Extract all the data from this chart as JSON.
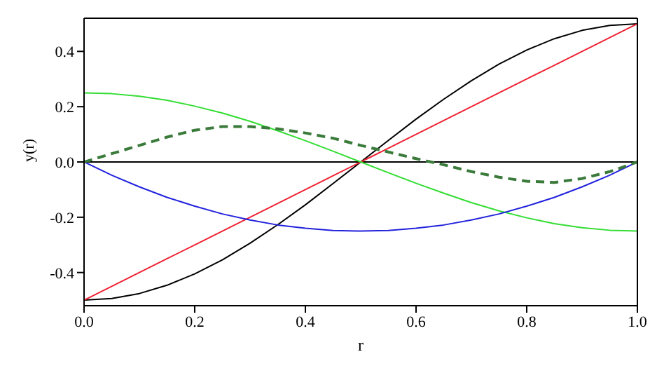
{
  "chart_data": {
    "type": "line",
    "xlabel": "r",
    "ylabel": "y(r)",
    "xlim": [
      0,
      1
    ],
    "ylim": [
      -0.52,
      0.52
    ],
    "xticks": [
      {
        "value": 0,
        "label": "0.0"
      },
      0.2,
      0.4,
      0.6,
      0.8,
      {
        "value": 1,
        "label": "1.0"
      }
    ],
    "yticks": [
      -0.4,
      -0.2,
      {
        "value": 0,
        "label": "0.0"
      },
      0.2,
      0.4
    ],
    "legend": false,
    "marker": "none",
    "x": [
      0,
      0.05,
      0.1,
      0.15,
      0.2,
      0.25,
      0.3,
      0.35,
      0.4,
      0.45,
      0.5,
      0.55,
      0.6,
      0.65,
      0.7,
      0.75,
      0.8,
      0.85,
      0.9,
      0.95,
      1
    ],
    "ref_lines": [
      {
        "axis": "y",
        "value": 0,
        "color": "#000000"
      }
    ],
    "series": [
      {
        "color": "#000000",
        "line_style": "solid",
        "values": [
          -0.5,
          -0.494,
          -0.476,
          -0.446,
          -0.405,
          -0.354,
          -0.294,
          -0.227,
          -0.155,
          -0.078,
          0,
          0.078,
          0.155,
          0.227,
          0.294,
          0.354,
          0.405,
          0.446,
          0.476,
          0.494,
          0.5
        ]
      },
      {
        "color": "#ee2233",
        "line_style": "solid",
        "values": [
          -0.5,
          -0.45,
          -0.4,
          -0.35,
          -0.3,
          -0.25,
          -0.2,
          -0.15,
          -0.1,
          -0.05,
          0,
          0.05,
          0.1,
          0.15,
          0.2,
          0.25,
          0.3,
          0.35,
          0.4,
          0.45,
          0.5
        ]
      },
      {
        "color": "#33dd33",
        "line_style": "solid",
        "values": [
          0.25,
          0.247,
          0.238,
          0.223,
          0.202,
          0.177,
          0.147,
          0.113,
          0.077,
          0.039,
          0,
          -0.039,
          -0.077,
          -0.113,
          -0.147,
          -0.177,
          -0.202,
          -0.223,
          -0.238,
          -0.247,
          -0.25
        ]
      },
      {
        "color": "#2222dd",
        "line_style": "solid",
        "values": [
          0,
          -0.048,
          -0.09,
          -0.128,
          -0.16,
          -0.188,
          -0.21,
          -0.228,
          -0.24,
          -0.248,
          -0.25,
          -0.248,
          -0.24,
          -0.228,
          -0.21,
          -0.188,
          -0.16,
          -0.128,
          -0.09,
          -0.048,
          0
        ]
      },
      {
        "color": "#3a7a3a",
        "line_style": "dashed",
        "values": [
          0,
          0.03,
          0.06,
          0.09,
          0.115,
          0.128,
          0.128,
          0.12,
          0.105,
          0.086,
          0.06,
          0.036,
          0.012,
          -0.01,
          -0.035,
          -0.055,
          -0.07,
          -0.074,
          -0.06,
          -0.035,
          0
        ]
      }
    ]
  }
}
